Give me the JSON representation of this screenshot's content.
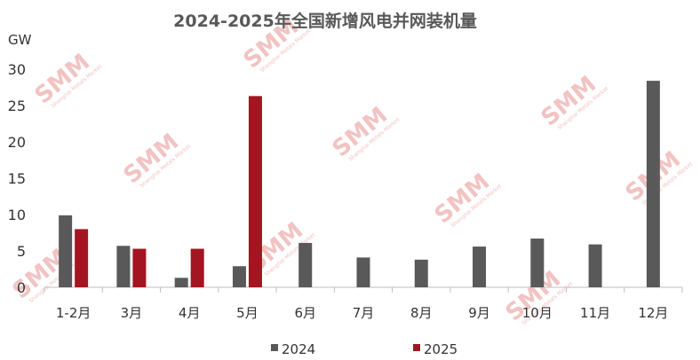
{
  "chart_data": {
    "type": "bar",
    "title": "2024-2025年全国新增风电并网装机量",
    "unit_label": "GW",
    "categories": [
      "1-2月",
      "3月",
      "4月",
      "5月",
      "6月",
      "7月",
      "8月",
      "9月",
      "10月",
      "11月",
      "12月"
    ],
    "series": [
      {
        "name": "2024",
        "color": "#595959",
        "values": [
          9.9,
          5.7,
          1.3,
          2.9,
          6.1,
          4.1,
          3.8,
          5.6,
          6.7,
          5.9,
          28.4
        ]
      },
      {
        "name": "2025",
        "color": "#a31621",
        "values": [
          8.0,
          5.3,
          5.3,
          26.3,
          null,
          null,
          null,
          null,
          null,
          null,
          null
        ]
      }
    ],
    "y_ticks": [
      0,
      5,
      10,
      15,
      20,
      25,
      30
    ],
    "ylim": [
      0,
      30
    ],
    "grid": false,
    "legend_position": "bottom-center"
  },
  "watermark": {
    "text": "SMM",
    "subtext": "Shanghai Metals Market"
  }
}
